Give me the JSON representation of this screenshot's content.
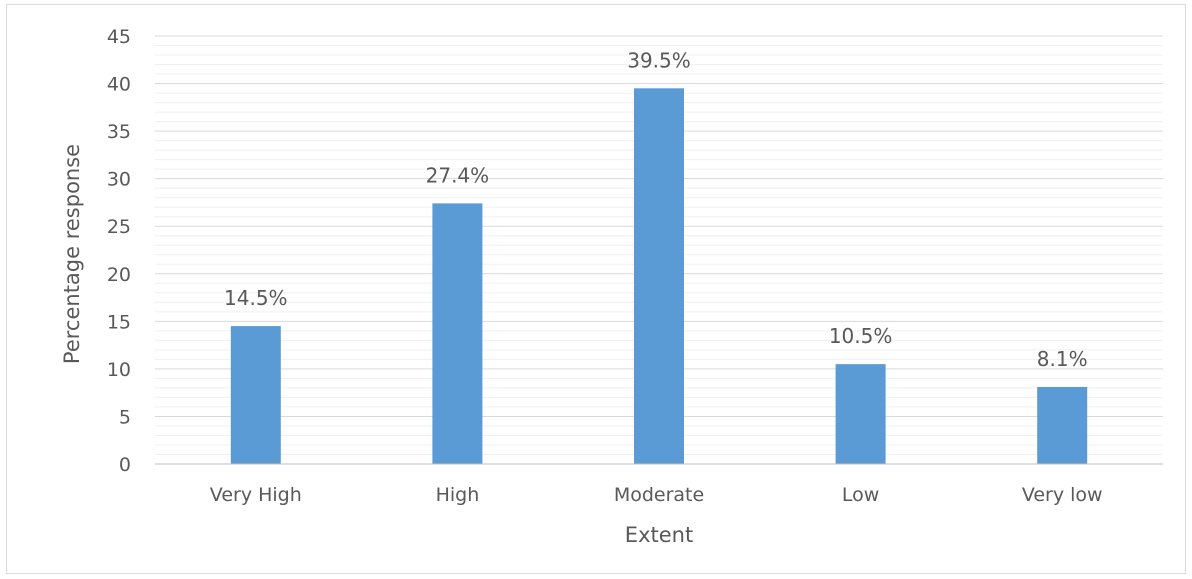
{
  "chart_data": {
    "type": "bar",
    "title": "",
    "xlabel": "Extent",
    "ylabel": "Percentage response",
    "categories": [
      "Very High",
      "High",
      "Moderate",
      "Low",
      "Very low"
    ],
    "values": [
      14.5,
      27.4,
      39.5,
      10.5,
      8.1
    ],
    "data_labels": [
      "14.5%",
      "27.4%",
      "39.5%",
      "10.5%",
      "8.1%"
    ],
    "ylim": [
      0,
      45
    ],
    "yticks": [
      0,
      5,
      10,
      15,
      20,
      25,
      30,
      35,
      40,
      45
    ],
    "grid": true,
    "minor_grid": true,
    "legend": "none",
    "bar_color": "#5b9bd5",
    "gridline_color": "#d9d9d9"
  }
}
